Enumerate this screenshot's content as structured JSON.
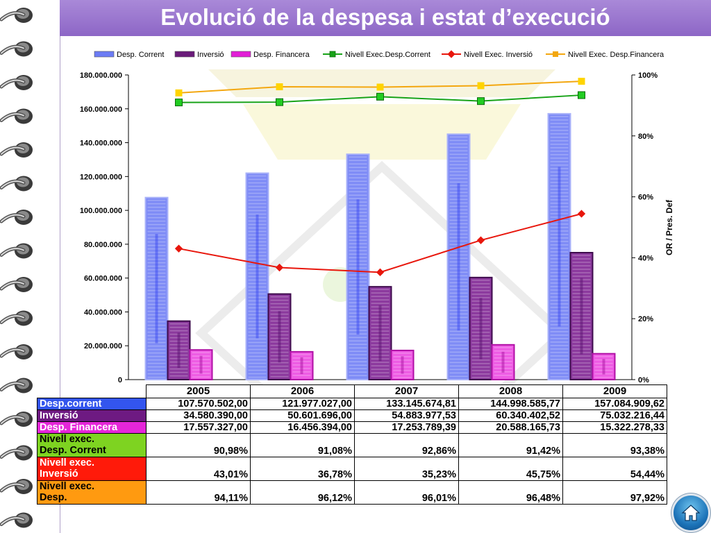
{
  "title": "Evolució de la despesa i estat d’execució",
  "colors": {
    "desp_corrent": "#4a55f0",
    "inversio": "#6a1c7a",
    "desp_financera": "#e21fd6",
    "nivell_corrent": "#18a318",
    "nivell_inversio": "#e8160c",
    "nivell_financera": "#f3a70f",
    "title_bar": "#9a79d1"
  },
  "legend": [
    {
      "label": "Desp. Corrent",
      "kind": "bar",
      "color": "#6c7cf4"
    },
    {
      "label": "Inversió",
      "kind": "bar",
      "color": "#6a1c7a"
    },
    {
      "label": "Desp. Financera",
      "kind": "bar",
      "color": "#e21fd6"
    },
    {
      "label": "Nivell Exec.Desp.Corrent",
      "kind": "line",
      "color": "#18a318"
    },
    {
      "label": "Nivell Exec. Inversió",
      "kind": "line",
      "color": "#e8160c"
    },
    {
      "label": "Nivell Exec. Desp.Financera",
      "kind": "line",
      "color": "#f3a70f"
    }
  ],
  "chart_data": {
    "type": "bar",
    "categories": [
      "2005",
      "2006",
      "2007",
      "2008",
      "2009"
    ],
    "series": [
      {
        "name": "Desp. Corrent",
        "values": [
          107570502.0,
          121977027.0,
          133145674.81,
          144998585.77,
          157084909.62
        ]
      },
      {
        "name": "Inversió",
        "values": [
          34580390.0,
          50601696.0,
          54883977.53,
          60340402.52,
          75032216.44
        ]
      },
      {
        "name": "Desp. Financera",
        "values": [
          17557327.0,
          16456394.0,
          17253789.39,
          20588165.73,
          15322278.33
        ]
      }
    ],
    "line_series": [
      {
        "name": "Nivell Exec.Desp.Corrent",
        "values": [
          90.98,
          91.08,
          92.86,
          91.42,
          93.38
        ]
      },
      {
        "name": "Nivell Exec. Inversió",
        "values": [
          43.01,
          36.78,
          35.23,
          45.75,
          54.44
        ]
      },
      {
        "name": "Nivell Exec. Desp.Financera",
        "values": [
          94.11,
          96.12,
          96.01,
          96.48,
          97.92
        ]
      }
    ],
    "ylim": [
      0,
      180000000
    ],
    "y_ticks": [
      "0",
      "20.000.000",
      "40.000.000",
      "60.000.000",
      "80.000.000",
      "100.000.000",
      "120.000.000",
      "140.000.000",
      "160.000.000",
      "180.000.000"
    ],
    "y2lim": [
      0,
      100
    ],
    "y2_ticks": [
      "0%",
      "20%",
      "40%",
      "60%",
      "80%",
      "100%"
    ],
    "y2label": "OR / Pres. Def",
    "legend_position": "top",
    "grid": false
  },
  "table": {
    "years": [
      "2005",
      "2006",
      "2007",
      "2008",
      "2009"
    ],
    "rows": [
      {
        "label": "Desp.corrent",
        "bg": "#3355ee",
        "fg": "#ffffff",
        "values": [
          "107.570.502,00",
          "121.977.027,00",
          "133.145.674,81",
          "144.998.585,77",
          "157.084.909,62"
        ]
      },
      {
        "label": "Inversió",
        "bg": "#6e1a82",
        "fg": "#ffffff",
        "values": [
          "34.580.390,00",
          "50.601.696,00",
          "54.883.977,53",
          "60.340.402,52",
          "75.032.216,44"
        ]
      },
      {
        "label": "Desp. Financera",
        "bg": "#e526d9",
        "fg": "#ffffff",
        "values": [
          "17.557.327,00",
          "16.456.394,00",
          "17.253.789,39",
          "20.588.165,73",
          "15.322.278,33"
        ]
      },
      {
        "label1": "Nivell exec.",
        "label2": "Desp. Corrent",
        "bg": "#7ed321",
        "fg": "#000000",
        "values": [
          "90,98%",
          "91,08%",
          "92,86%",
          "91,42%",
          "93,38%"
        ]
      },
      {
        "label1": "Nivell exec.",
        "label2": "Inversió",
        "bg": "#ff1a0a",
        "fg": "#ffffff",
        "values": [
          "43,01%",
          "36,78%",
          "35,23%",
          "45,75%",
          "54,44%"
        ]
      },
      {
        "label1": "Nivell exec.",
        "label2": "Desp.",
        "bg": "#ff9a10",
        "fg": "#000000",
        "values": [
          "94,11%",
          "96,12%",
          "96,01%",
          "96,48%",
          "97,92%"
        ]
      }
    ]
  },
  "home_button": {
    "icon": "home-icon"
  }
}
